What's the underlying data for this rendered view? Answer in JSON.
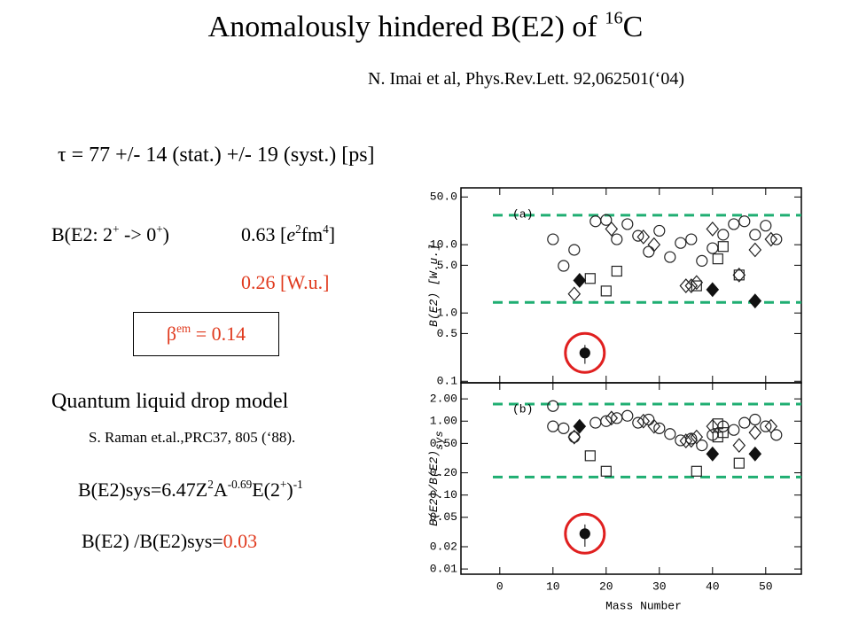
{
  "title": [
    "Anomalously hindered B(E2) of ",
    "16",
    "C"
  ],
  "reference": "N. Imai et al, Phys.Rev.Lett. 92,062501(‘04)",
  "lifetime": "τ = 77 +/- 14 (stat.) +/- 19 (syst.)  [ps]",
  "be2_label": [
    "B(E2: 2",
    "+",
    " -> 0",
    "+",
    ")"
  ],
  "be2_value": [
    "0.63 [",
    "e",
    "2",
    "fm",
    "4",
    "]"
  ],
  "be2_wu": "0.26 [W.u.]",
  "beta": [
    "β",
    "em",
    " = 0.14"
  ],
  "model": "Quantum liquid drop model",
  "model_ref": "S. Raman et.al.,PRC37, 805 (‘88).",
  "formula": [
    "B(E2)sys=6.47Z",
    "2",
    "A",
    "-0.69",
    "E(2",
    "+",
    ")",
    "-1"
  ],
  "ratio": [
    "B(E2) /B(E2)sys=",
    "0.03"
  ],
  "chart_data": [
    {
      "type": "scatter",
      "panel_label": "(a)",
      "ylabel": "B(E2) [W.u.]",
      "log_y": true,
      "xlim": [
        -7.3,
        56.7
      ],
      "xticks": [
        0,
        10,
        20,
        30,
        40,
        50
      ],
      "ylim": [
        0.095,
        68
      ],
      "yticks": [
        0.1,
        0.5,
        {
          "value": 1,
          "label": "1.0"
        },
        {
          "value": 5,
          "label": "5.0"
        },
        {
          "value": 10,
          "label": "10.0"
        },
        {
          "value": 50,
          "label": "50.0"
        }
      ],
      "hlines": [
        {
          "value": 27,
          "color": "#1fae72"
        },
        {
          "value": 1.43,
          "color": "#1fae72"
        }
      ],
      "series": [
        {
          "marker": "circle",
          "filled": false,
          "color": "#222222",
          "x": [
            10,
            12,
            14,
            18,
            20,
            22,
            24,
            26,
            28,
            30,
            32,
            34,
            36,
            38,
            40,
            42,
            44,
            46,
            48,
            50,
            52
          ],
          "values": [
            12,
            4.9,
            8.4,
            22,
            23,
            12,
            20,
            13.5,
            7.9,
            16,
            6.6,
            10.6,
            12,
            5.8,
            8.9,
            14,
            20,
            22,
            14,
            19,
            12
          ]
        },
        {
          "marker": "square",
          "filled": false,
          "color": "#222222",
          "x": [
            17,
            20,
            22,
            37,
            41,
            42,
            45
          ],
          "values": [
            3.2,
            2.1,
            4.1,
            2.5,
            6.2,
            9.4,
            3.6
          ]
        },
        {
          "marker": "diamond",
          "filled": false,
          "color": "#222222",
          "x": [
            14,
            21,
            27,
            29,
            35,
            36,
            37,
            40,
            45,
            48,
            51
          ],
          "values": [
            1.9,
            17,
            13,
            10,
            2.5,
            2.5,
            2.8,
            17,
            3.6,
            8.4,
            12
          ]
        },
        {
          "marker": "diamond",
          "filled": true,
          "color": "#111111",
          "x": [
            15,
            40,
            48
          ],
          "values": [
            3.0,
            2.2,
            1.5
          ]
        },
        {
          "marker": "circle",
          "filled": true,
          "color": "#111111",
          "highlight": "#e02020",
          "x": [
            16
          ],
          "values": [
            0.26
          ],
          "errors": [
            0.08
          ]
        }
      ]
    },
    {
      "type": "scatter",
      "panel_label": "(b)",
      "ylabel": "B(E2)/B(E2)",
      "ylabel_sub": "sys",
      "xlabel": "Mass Number",
      "log_y": true,
      "xlim": [
        -7.3,
        56.7
      ],
      "xticks": [
        0,
        10,
        20,
        30,
        40,
        50
      ],
      "ylim": [
        0.0085,
        3.3
      ],
      "yticks": [
        0.01,
        0.02,
        0.05,
        {
          "value": 0.1,
          "label": "0.10"
        },
        {
          "value": 0.2,
          "label": "0.20"
        },
        {
          "value": 0.5,
          "label": "0.50"
        },
        {
          "value": 1,
          "label": "1.00"
        },
        {
          "value": 2,
          "label": "2.00"
        }
      ],
      "hlines": [
        {
          "value": 1.7,
          "color": "#1fae72"
        },
        {
          "value": 0.175,
          "color": "#1fae72"
        }
      ],
      "series": [
        {
          "marker": "circle",
          "filled": false,
          "color": "#222222",
          "x": [
            10,
            10,
            12,
            14,
            18,
            20,
            22,
            24,
            26,
            28,
            30,
            32,
            34,
            36,
            38,
            40,
            42,
            44,
            46,
            48,
            50,
            52
          ],
          "values": [
            1.6,
            0.85,
            0.8,
            0.61,
            0.95,
            1.0,
            1.1,
            1.18,
            0.95,
            1.05,
            0.8,
            0.67,
            0.55,
            0.58,
            0.47,
            0.65,
            0.85,
            0.76,
            0.95,
            1.05,
            0.85,
            0.65
          ]
        },
        {
          "marker": "square",
          "filled": false,
          "color": "#222222",
          "x": [
            17,
            20,
            37,
            41,
            42,
            45,
            41
          ],
          "values": [
            0.34,
            0.21,
            0.21,
            0.61,
            0.7,
            0.27,
            0.92
          ]
        },
        {
          "marker": "diamond",
          "filled": false,
          "color": "#222222",
          "x": [
            14,
            21,
            27,
            29,
            35,
            36,
            37,
            40,
            45,
            48,
            51
          ],
          "values": [
            0.61,
            1.1,
            1.0,
            0.85,
            0.54,
            0.55,
            0.61,
            0.85,
            0.47,
            0.7,
            0.85
          ]
        },
        {
          "marker": "diamond",
          "filled": true,
          "color": "#111111",
          "x": [
            15,
            40,
            48
          ],
          "values": [
            0.85,
            0.36,
            0.36
          ]
        },
        {
          "marker": "circle",
          "filled": true,
          "color": "#111111",
          "highlight": "#e02020",
          "x": [
            16
          ],
          "values": [
            0.03
          ],
          "errors": [
            0.01
          ]
        }
      ]
    }
  ]
}
